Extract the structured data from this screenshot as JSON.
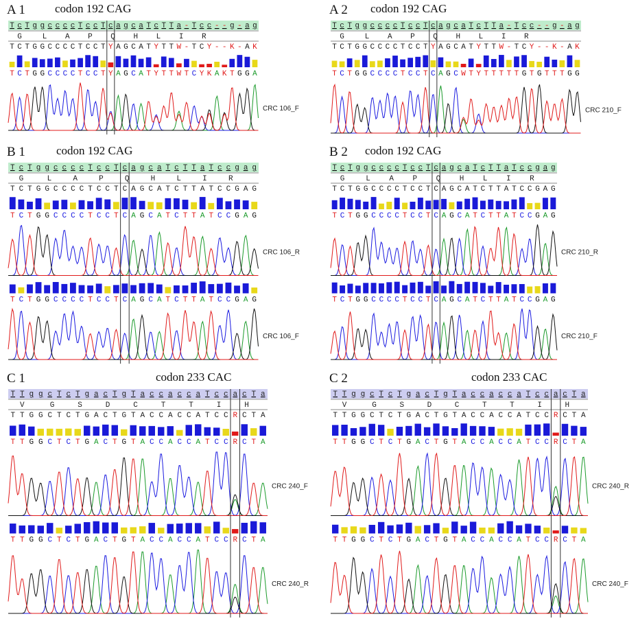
{
  "panels": [
    {
      "label": "A 1",
      "codon": "codon 192 CAG",
      "reference": "TcTggccccTccTcagcaTcTTa-Tcc--g-ag",
      "amino_acids": "G L A P Q H L I R",
      "consensus": "TCTGGCCCCTCCTYAGCATYTTW-TCY--K-AK",
      "traces": [
        {
          "bases": "TCTGGCCCCTCCTYAGCATYTTWTCYKAKTGGA",
          "sample": "CRC 106_F"
        }
      ]
    },
    {
      "label": "A 2",
      "codon": "codon 192 CAG",
      "reference": "TcTggccccTccTcagcaTcTTa-Tcc--g-ag",
      "amino_acids": "G L A P Q H L I R",
      "consensus": "TCTGGCCCCTCCTYAGCATYTTW-TCY--K-AK",
      "traces": [
        {
          "bases": "TCTGGCCCCTCCTCAGCWTYTTTTTGTGTTTGG",
          "sample": "CRC 210_F"
        }
      ]
    },
    {
      "label": "B 1",
      "codon": "codon 192 CAG",
      "reference": "TcTggccccTccTcagcaTcTTaTccgag",
      "amino_acids": "G L A P Q H L I R",
      "consensus": "TCTGGCCCCTCCTCAGCATCTTATCCGAG",
      "traces": [
        {
          "bases": "TCTGGCCCCTCCTCAGCATCTTATCCGAG",
          "sample": "CRC 106_R"
        },
        {
          "bases": "TCTGGCCCCTCCTCAGCATCTTATCCGAG",
          "sample": "CRC 106_F"
        }
      ]
    },
    {
      "label": "B 2",
      "codon": "codon 192 CAG",
      "reference": "TcTggccccTccTcagcaTcTTaTccgag",
      "amino_acids": "G L A P Q H L I R",
      "consensus": "TCTGGCCCCTCCTCAGCATCTTATCCGAG",
      "traces": [
        {
          "bases": "TCTGGCCCCTCCTCAGCATCTTATCCGAG",
          "sample": "CRC 210_R"
        },
        {
          "bases": "TCTGGCCCCTCCTCAGCATCTTATCCGAG",
          "sample": "CRC 210_F"
        }
      ]
    },
    {
      "label": "C 1",
      "codon": "codon 233 CAC",
      "reference": "TTggcTcTgacTgTaccaccaTccacTa",
      "amino_acids": "V G S D C T T I H",
      "consensus": "TTGGCTCTGACTGTACCACCATCCRCTA",
      "traces": [
        {
          "bases": "TTGGCTCTGACTGTACCACCATCCRCTA",
          "sample": "CRC 240_F"
        },
        {
          "bases": "TTGGCTCTGACTGTACCACCATCCRCTA",
          "sample": "CRC 240_R"
        }
      ]
    },
    {
      "label": "C 2",
      "codon": "codon 233 CAC",
      "reference": "TTggcTcTgacTgTaccaccaTccacTa",
      "amino_acids": "V G S D C T T I H",
      "consensus": "TTGGCTCTGACTGTACCACCATCCRCTA",
      "traces": [
        {
          "bases": "TTGGCTCTGACTGTACCACCATCCRCTA",
          "sample": "CRC 240_R"
        },
        {
          "bases": "TTGGCTCTGACTGTACCACCATCCRCTA",
          "sample": "CRC 240_F"
        }
      ]
    }
  ]
}
